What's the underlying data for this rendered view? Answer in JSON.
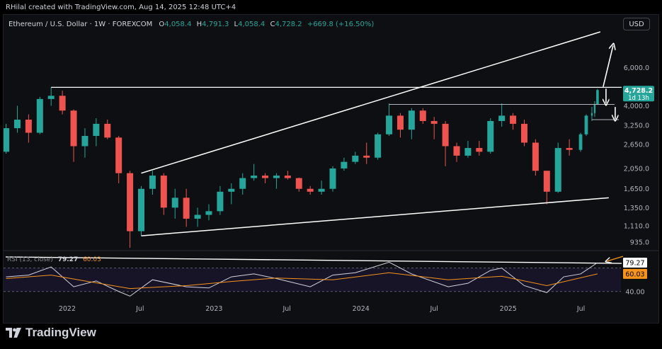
{
  "header": {
    "attribution": "RHilal created with TradingView.com, Aug 14, 2025 12:48 UTC+4"
  },
  "legend": {
    "symbol": "Ethereum / U.S. Dollar · 1W · FOREXCOM",
    "o_key": "O",
    "o_val": "4,058.4",
    "h_key": "H",
    "h_val": "4,791.3",
    "l_key": "L",
    "l_val": "4,058.4",
    "c_key": "C",
    "c_val": "4,728.2",
    "change": "+669.8 (+16.50%)"
  },
  "currency_button": "USD",
  "price_badge": {
    "price": "4,728.2",
    "countdown": "1d 13h"
  },
  "rsi_legend": {
    "name": "RSI (13, close)",
    "rsi_value": "79.27",
    "ma_value": "60.03"
  },
  "rsi_badges": {
    "rsi": "79.27",
    "ma": "60.03",
    "level": "40.00"
  },
  "footer": {
    "brand": "TradingView"
  },
  "colors": {
    "up": "#26a69a",
    "down": "#ef5350",
    "rsi_line": "#d1d4dc",
    "rsi_ma": "#f7931a",
    "trendline": "#ffffff",
    "background": "#0e0f12"
  },
  "chart_data": {
    "type": "candlestick",
    "timeframe": "1W",
    "x_tick_labels": [
      "2022",
      "Jul",
      "2023",
      "Jul",
      "2024",
      "Jul",
      "2025",
      "Jul"
    ],
    "y_tick_labels": [
      "6,000.0",
      "4,000.0",
      "3,250.0",
      "2,650.0",
      "2,050.0",
      "1,650.0",
      "1,350.0",
      "1,110.0",
      "935.0"
    ],
    "y_scale": "log",
    "price_candles": [
      {
        "t": "2021-08-02",
        "o": 2450,
        "h": 3300,
        "l": 2400,
        "c": 3150
      },
      {
        "t": "2021-08-30",
        "o": 3150,
        "h": 4000,
        "l": 3000,
        "c": 3450
      },
      {
        "t": "2021-09-27",
        "o": 3450,
        "h": 3650,
        "l": 2700,
        "c": 3000
      },
      {
        "t": "2021-10-25",
        "o": 3000,
        "h": 4400,
        "l": 2950,
        "c": 4300
      },
      {
        "t": "2021-11-22",
        "o": 4300,
        "h": 4870,
        "l": 4000,
        "c": 4450
      },
      {
        "t": "2021-12-20",
        "o": 4450,
        "h": 4700,
        "l": 3650,
        "c": 3800
      },
      {
        "t": "2022-01-17",
        "o": 3800,
        "h": 3850,
        "l": 2200,
        "c": 2600
      },
      {
        "t": "2022-02-14",
        "o": 2600,
        "h": 3150,
        "l": 2300,
        "c": 2900
      },
      {
        "t": "2022-03-14",
        "o": 2900,
        "h": 3500,
        "l": 2600,
        "c": 3300
      },
      {
        "t": "2022-04-11",
        "o": 3300,
        "h": 3450,
        "l": 2800,
        "c": 2850
      },
      {
        "t": "2022-05-09",
        "o": 2850,
        "h": 2900,
        "l": 1750,
        "c": 1950
      },
      {
        "t": "2022-06-06",
        "o": 1950,
        "h": 2000,
        "l": 880,
        "c": 1050
      },
      {
        "t": "2022-07-04",
        "o": 1050,
        "h": 1700,
        "l": 1000,
        "c": 1650
      },
      {
        "t": "2022-08-01",
        "o": 1650,
        "h": 2000,
        "l": 1550,
        "c": 1900
      },
      {
        "t": "2022-08-29",
        "o": 1900,
        "h": 1950,
        "l": 1250,
        "c": 1350
      },
      {
        "t": "2022-09-26",
        "o": 1350,
        "h": 1650,
        "l": 1200,
        "c": 1500
      },
      {
        "t": "2022-10-24",
        "o": 1500,
        "h": 1650,
        "l": 1100,
        "c": 1200
      },
      {
        "t": "2022-11-21",
        "o": 1200,
        "h": 1350,
        "l": 1100,
        "c": 1250
      },
      {
        "t": "2022-12-19",
        "o": 1250,
        "h": 1400,
        "l": 1180,
        "c": 1300
      },
      {
        "t": "2023-01-16",
        "o": 1300,
        "h": 1700,
        "l": 1250,
        "c": 1600
      },
      {
        "t": "2023-02-13",
        "o": 1600,
        "h": 1750,
        "l": 1400,
        "c": 1650
      },
      {
        "t": "2023-03-13",
        "o": 1650,
        "h": 1950,
        "l": 1550,
        "c": 1850
      },
      {
        "t": "2023-04-10",
        "o": 1850,
        "h": 2150,
        "l": 1800,
        "c": 1900
      },
      {
        "t": "2023-05-08",
        "o": 1900,
        "h": 1950,
        "l": 1750,
        "c": 1850
      },
      {
        "t": "2023-06-05",
        "o": 1850,
        "h": 1950,
        "l": 1650,
        "c": 1900
      },
      {
        "t": "2023-07-03",
        "o": 1900,
        "h": 2000,
        "l": 1820,
        "c": 1850
      },
      {
        "t": "2023-07-31",
        "o": 1850,
        "h": 1860,
        "l": 1600,
        "c": 1650
      },
      {
        "t": "2023-08-28",
        "o": 1650,
        "h": 1700,
        "l": 1550,
        "c": 1600
      },
      {
        "t": "2023-09-25",
        "o": 1600,
        "h": 1800,
        "l": 1550,
        "c": 1650
      },
      {
        "t": "2023-10-23",
        "o": 1650,
        "h": 2100,
        "l": 1600,
        "c": 2050
      },
      {
        "t": "2023-11-20",
        "o": 2050,
        "h": 2300,
        "l": 2000,
        "c": 2200
      },
      {
        "t": "2023-12-18",
        "o": 2200,
        "h": 2450,
        "l": 2150,
        "c": 2350
      },
      {
        "t": "2024-01-15",
        "o": 2350,
        "h": 2700,
        "l": 2150,
        "c": 2300
      },
      {
        "t": "2024-02-12",
        "o": 2300,
        "h": 3000,
        "l": 2250,
        "c": 2950
      },
      {
        "t": "2024-03-11",
        "o": 2950,
        "h": 4100,
        "l": 2900,
        "c": 3600
      },
      {
        "t": "2024-04-08",
        "o": 3600,
        "h": 3700,
        "l": 2850,
        "c": 3100
      },
      {
        "t": "2024-05-06",
        "o": 3100,
        "h": 3900,
        "l": 2800,
        "c": 3800
      },
      {
        "t": "2024-06-03",
        "o": 3800,
        "h": 3900,
        "l": 3300,
        "c": 3400
      },
      {
        "t": "2024-07-01",
        "o": 3400,
        "h": 3550,
        "l": 2800,
        "c": 3300
      },
      {
        "t": "2024-07-29",
        "o": 3300,
        "h": 3400,
        "l": 2100,
        "c": 2600
      },
      {
        "t": "2024-08-26",
        "o": 2600,
        "h": 2700,
        "l": 2200,
        "c": 2350
      },
      {
        "t": "2024-09-23",
        "o": 2350,
        "h": 2750,
        "l": 2300,
        "c": 2550
      },
      {
        "t": "2024-10-21",
        "o": 2550,
        "h": 2750,
        "l": 2350,
        "c": 2450
      },
      {
        "t": "2024-11-18",
        "o": 2450,
        "h": 3500,
        "l": 2400,
        "c": 3400
      },
      {
        "t": "2024-12-16",
        "o": 3400,
        "h": 4100,
        "l": 3200,
        "c": 3600
      },
      {
        "t": "2025-01-13",
        "o": 3600,
        "h": 3700,
        "l": 3100,
        "c": 3300
      },
      {
        "t": "2025-02-10",
        "o": 3300,
        "h": 3450,
        "l": 2600,
        "c": 2700
      },
      {
        "t": "2025-03-10",
        "o": 2700,
        "h": 2800,
        "l": 1900,
        "c": 2000
      },
      {
        "t": "2025-04-07",
        "o": 2000,
        "h": 2000,
        "l": 1400,
        "c": 1600
      },
      {
        "t": "2025-05-05",
        "o": 1600,
        "h": 2700,
        "l": 1580,
        "c": 2550
      },
      {
        "t": "2025-06-02",
        "o": 2550,
        "h": 2800,
        "l": 2350,
        "c": 2500
      },
      {
        "t": "2025-06-30",
        "o": 2500,
        "h": 3000,
        "l": 2450,
        "c": 2950
      },
      {
        "t": "2025-07-14",
        "o": 2950,
        "h": 3650,
        "l": 2900,
        "c": 3600
      },
      {
        "t": "2025-07-28",
        "o": 3600,
        "h": 3950,
        "l": 3400,
        "c": 3700
      },
      {
        "t": "2025-08-04",
        "o": 3700,
        "h": 4200,
        "l": 3550,
        "c": 4058.4
      },
      {
        "t": "2025-08-11",
        "o": 4058.4,
        "h": 4791.3,
        "l": 4058.4,
        "c": 4728.2
      }
    ],
    "horizontal_levels": [
      4870,
      4058,
      3450
    ],
    "trendlines": [
      {
        "name": "upper-channel",
        "from": {
          "t": "2022-07-04",
          "price": 1950
        },
        "to": {
          "t": "2025-08-18",
          "price": 8800
        }
      },
      {
        "name": "lower-channel",
        "from": {
          "t": "2022-07-04",
          "price": 1000
        },
        "to": {
          "t": "2025-09-08",
          "price": 1500
        }
      }
    ],
    "rsi_series": [
      {
        "t": "2021-08-02",
        "rsi": 55
      },
      {
        "t": "2021-09-27",
        "rsi": 58
      },
      {
        "t": "2021-11-22",
        "rsi": 72
      },
      {
        "t": "2022-01-17",
        "rsi": 38
      },
      {
        "t": "2022-03-14",
        "rsi": 48
      },
      {
        "t": "2022-05-09",
        "rsi": 30
      },
      {
        "t": "2022-06-06",
        "rsi": 22
      },
      {
        "t": "2022-08-01",
        "rsi": 50
      },
      {
        "t": "2022-10-24",
        "rsi": 38
      },
      {
        "t": "2022-12-19",
        "rsi": 36
      },
      {
        "t": "2023-02-13",
        "rsi": 55
      },
      {
        "t": "2023-04-10",
        "rsi": 60
      },
      {
        "t": "2023-06-05",
        "rsi": 52
      },
      {
        "t": "2023-08-28",
        "rsi": 38
      },
      {
        "t": "2023-10-23",
        "rsi": 58
      },
      {
        "t": "2023-12-18",
        "rsi": 62
      },
      {
        "t": "2024-03-11",
        "rsi": 80
      },
      {
        "t": "2024-05-06",
        "rsi": 60
      },
      {
        "t": "2024-08-05",
        "rsi": 38
      },
      {
        "t": "2024-09-23",
        "rsi": 44
      },
      {
        "t": "2024-11-18",
        "rsi": 66
      },
      {
        "t": "2024-12-16",
        "rsi": 70
      },
      {
        "t": "2025-02-10",
        "rsi": 40
      },
      {
        "t": "2025-04-07",
        "rsi": 28
      },
      {
        "t": "2025-05-19",
        "rsi": 55
      },
      {
        "t": "2025-06-30",
        "rsi": 60
      },
      {
        "t": "2025-08-11",
        "rsi": 79.27
      }
    ],
    "rsi_ma_series": [
      {
        "t": "2021-08-02",
        "v": 52
      },
      {
        "t": "2021-11-22",
        "v": 58
      },
      {
        "t": "2022-02-14",
        "v": 48
      },
      {
        "t": "2022-06-06",
        "v": 35
      },
      {
        "t": "2022-10-24",
        "v": 40
      },
      {
        "t": "2023-02-13",
        "v": 47
      },
      {
        "t": "2023-06-05",
        "v": 53
      },
      {
        "t": "2023-10-23",
        "v": 50
      },
      {
        "t": "2024-03-11",
        "v": 62
      },
      {
        "t": "2024-08-05",
        "v": 50
      },
      {
        "t": "2024-12-16",
        "v": 56
      },
      {
        "t": "2025-04-07",
        "v": 40
      },
      {
        "t": "2025-08-11",
        "v": 60.03
      }
    ],
    "rsi_levels": [
      70,
      30
    ],
    "rsi_ylim": [
      20,
      95
    ],
    "ylim": [
      880,
      9000
    ],
    "xlim": [
      "2021-08-01",
      "2025-10-10"
    ]
  }
}
